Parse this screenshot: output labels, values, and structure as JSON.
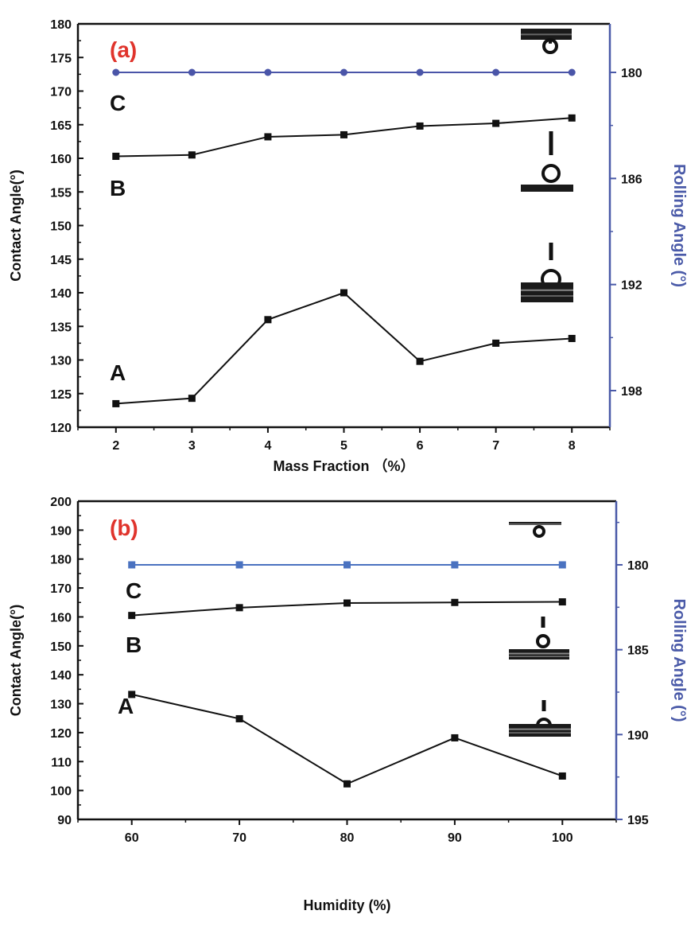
{
  "chart_data": [
    {
      "type": "line",
      "panel_label": "(a)",
      "xlabel": "Mass Fraction （%）",
      "ylabel": "Contact Angle(°)",
      "y2label": "Rolling Angle (°)",
      "x": [
        2,
        3,
        4,
        5,
        6,
        7,
        8
      ],
      "xlim": [
        1.5,
        8.5
      ],
      "xticks": [
        2,
        3,
        4,
        5,
        6,
        7,
        8
      ],
      "ylim": [
        120,
        180
      ],
      "yticks": [
        120,
        125,
        130,
        135,
        140,
        145,
        150,
        155,
        160,
        165,
        170,
        175,
        180
      ],
      "y2ticks": [
        180,
        186,
        192,
        198
      ],
      "y2_reversed": true,
      "series": [
        {
          "label": "A",
          "axis": "left",
          "color": "#111111",
          "values": [
            123.5,
            124.3,
            136,
            140,
            129.8,
            132.5,
            133.2
          ]
        },
        {
          "label": "B",
          "axis": "left",
          "color": "#111111",
          "values": [
            160.3,
            160.5,
            163.2,
            163.5,
            164.8,
            165.2,
            166
          ]
        },
        {
          "label": "C",
          "axis": "right",
          "color": "#4a55a8",
          "values": [
            180,
            180,
            180,
            180,
            180,
            180,
            180
          ]
        }
      ],
      "series_labels": [
        "A",
        "B",
        "C"
      ],
      "grid": false
    },
    {
      "type": "line",
      "panel_label": "(b)",
      "xlabel": "Humidity (%)",
      "ylabel": "Contact Angle(°)",
      "y2label": "Rolling Angle (°)",
      "x": [
        60,
        70,
        80,
        90,
        100
      ],
      "xlim": [
        55,
        105
      ],
      "xticks": [
        60,
        70,
        80,
        90,
        100
      ],
      "ylim": [
        90,
        200
      ],
      "yticks": [
        90,
        100,
        110,
        120,
        130,
        140,
        150,
        160,
        170,
        180,
        190,
        200
      ],
      "y2ticks": [
        180,
        185,
        190,
        195
      ],
      "y2_reversed": true,
      "series": [
        {
          "label": "A",
          "axis": "left",
          "color": "#111111",
          "values": [
            133.2,
            124.8,
            102.3,
            118.2,
            105
          ]
        },
        {
          "label": "B",
          "axis": "left",
          "color": "#111111",
          "values": [
            160.5,
            163.2,
            164.8,
            165,
            165.2
          ]
        },
        {
          "label": "C",
          "axis": "right",
          "color": "#4a72c0",
          "values": [
            180,
            180,
            180,
            180,
            180
          ]
        }
      ],
      "series_labels": [
        "A",
        "B",
        "C"
      ],
      "grid": false
    }
  ]
}
